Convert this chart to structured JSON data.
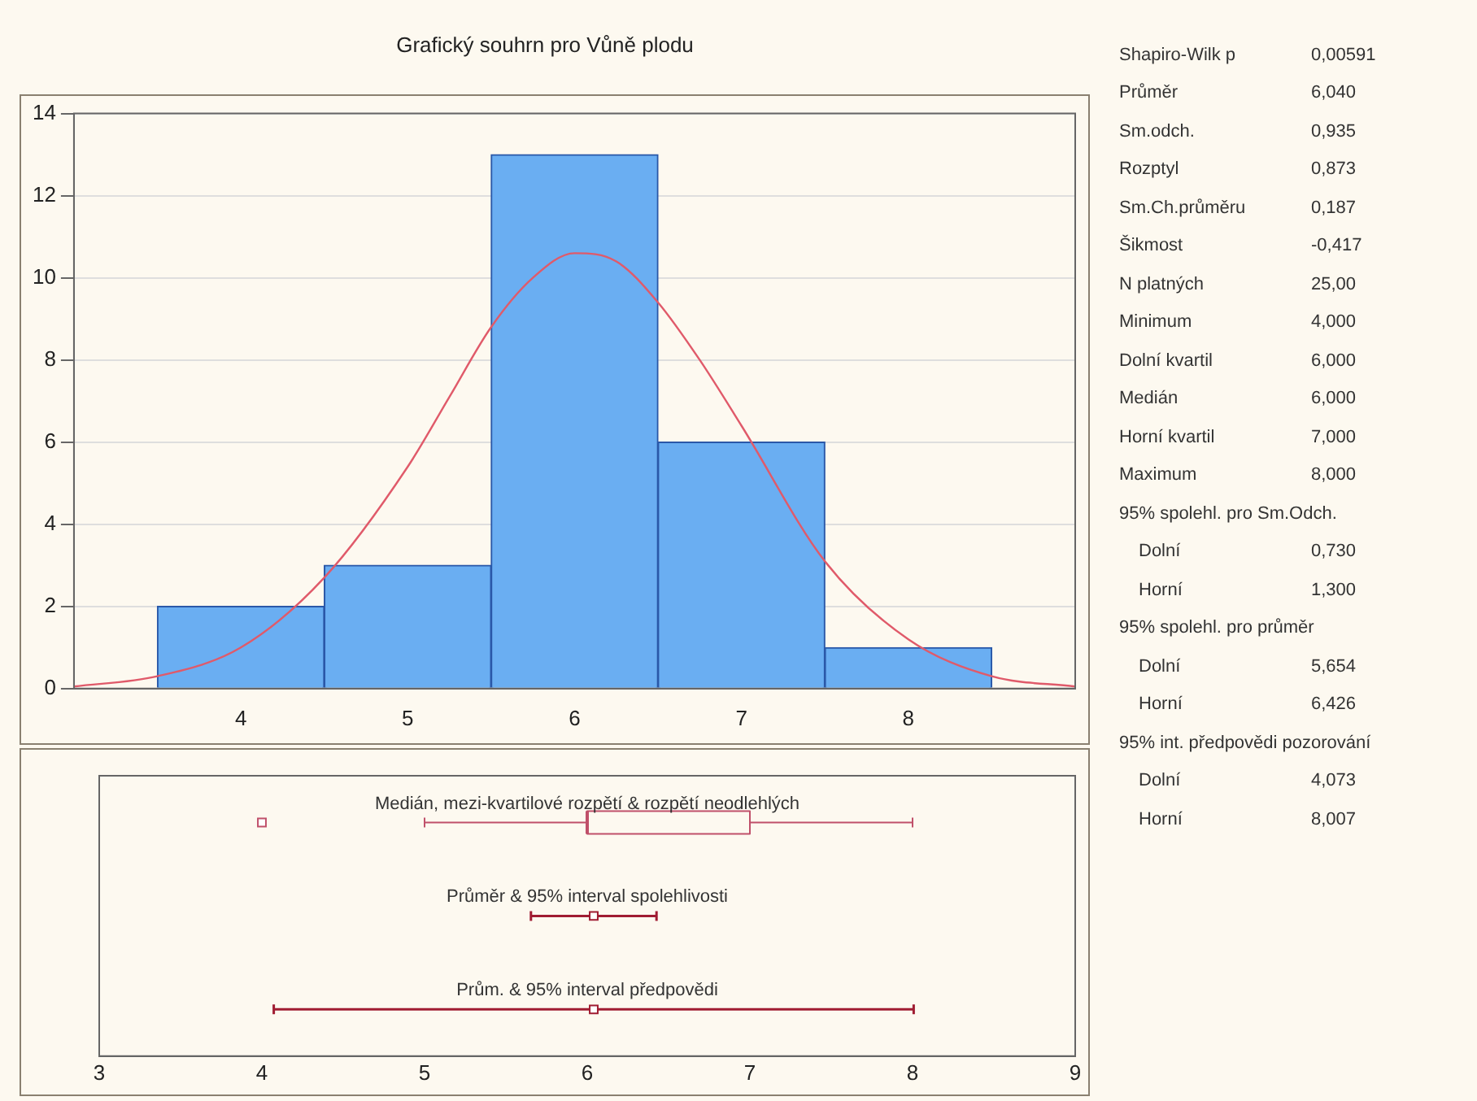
{
  "chart_data": [
    {
      "type": "histogram",
      "title": "Grafický souhrn pro Vůně plodu",
      "bins": [
        3.5,
        4.5,
        5.5,
        6.5,
        7.5,
        8.5
      ],
      "values": [
        2,
        3,
        13,
        6,
        1
      ],
      "color": "#6aaef2",
      "xlim": [
        3,
        9
      ],
      "xticks": [
        4,
        5,
        6,
        7,
        8
      ],
      "ylim": [
        0,
        14
      ],
      "yticks": [
        0,
        2,
        4,
        6,
        8,
        10,
        12,
        14
      ],
      "grid": "y",
      "series": [
        {
          "type": "line",
          "color": "#e05a6a",
          "x": [
            3,
            3.5,
            4,
            4.5,
            5,
            5.25,
            5.5,
            5.75,
            6,
            6.25,
            6.5,
            6.75,
            7,
            7.5,
            8,
            8.5,
            9
          ],
          "values": [
            0.05,
            0.3,
            1.0,
            2.7,
            5.4,
            7.1,
            8.8,
            10.0,
            10.6,
            10.4,
            9.4,
            8.0,
            6.4,
            3.1,
            1.2,
            0.3,
            0.05
          ]
        }
      ]
    },
    {
      "type": "box",
      "orientation": "horizontal",
      "color": "#c0506a",
      "categories": [
        "Medián, mezi-kvartilové rozpětí & rozpětí neodlehlých",
        "Průměr & 95% interval spolehlivosti",
        "Prům. & 95% interval předpovědi"
      ],
      "boxes": [
        {
          "low": 5,
          "q1": 6,
          "median": 6,
          "q3": 7,
          "high": 8,
          "outliers": [
            4
          ]
        },
        null,
        null
      ],
      "series": [
        {
          "type": "scatter",
          "color": "#a01c32",
          "values": [
            null,
            6.04,
            6.04
          ],
          "errors": [
            null,
            [
              5.654,
              6.426
            ],
            [
              4.073,
              8.007
            ]
          ]
        }
      ],
      "marker": "square",
      "xlim": [
        3,
        9
      ],
      "xticks": [
        3,
        4,
        5,
        6,
        7,
        8,
        9
      ],
      "tick_labels": "x"
    },
    {
      "type": "other",
      "categories": [
        "Shapiro-Wilk p",
        "Průměr",
        "Sm.odch.",
        "Rozptyl",
        "Sm.Ch.průměru",
        "Šikmost",
        "N platných",
        "Minimum",
        "Dolní kvartil",
        "Medián",
        "Horní kvartil",
        "Maximum",
        "95% spolehl. pro Sm.Odch.",
        "Dolní",
        "Horní",
        "95% spolehl. pro průměr",
        "Dolní",
        "Horní",
        "95% int. předpovědi pozorování",
        "Dolní",
        "Horní"
      ],
      "value_labels": [
        "0,00591",
        "6,040",
        "0,935",
        "0,873",
        "0,187",
        "-0,417",
        "25,00",
        "4,000",
        "6,000",
        "6,000",
        "7,000",
        "8,000",
        null,
        "0,730",
        "1,300",
        null,
        "5,654",
        "6,426",
        null,
        "4,073",
        "8,007"
      ]
    }
  ]
}
